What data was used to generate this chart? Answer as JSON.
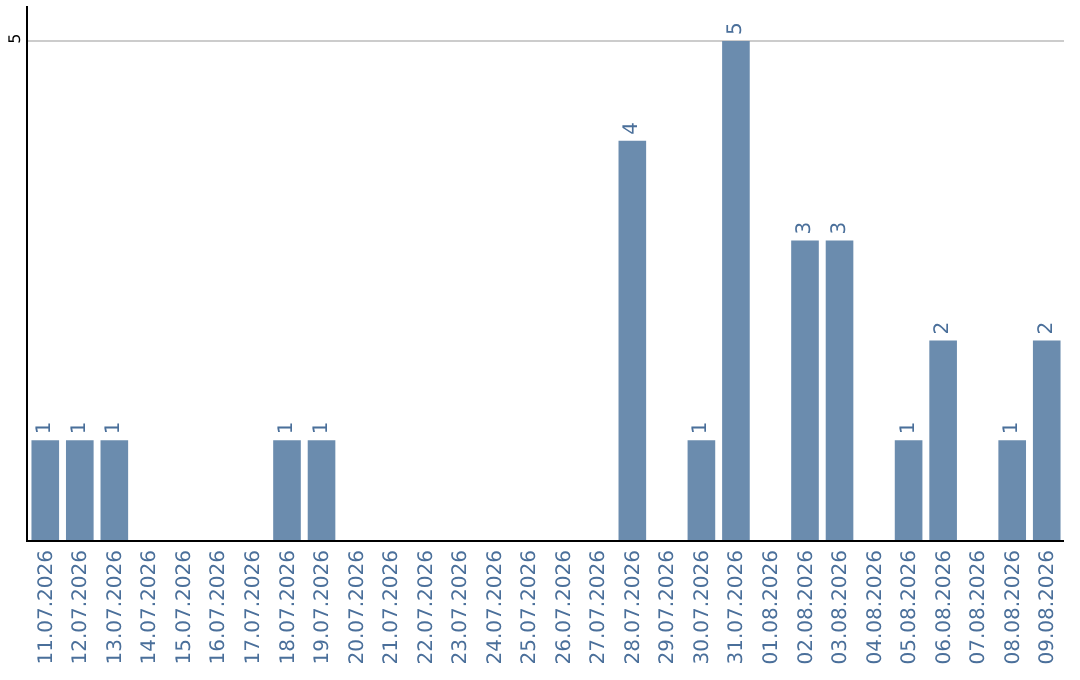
{
  "chart_data": {
    "type": "bar",
    "categories": [
      "11.07.2026",
      "12.07.2026",
      "13.07.2026",
      "14.07.2026",
      "15.07.2026",
      "16.07.2026",
      "17.07.2026",
      "18.07.2026",
      "19.07.2026",
      "20.07.2026",
      "21.07.2026",
      "22.07.2026",
      "23.07.2026",
      "24.07.2026",
      "25.07.2026",
      "26.07.2026",
      "27.07.2026",
      "28.07.2026",
      "29.07.2026",
      "30.07.2026",
      "31.07.2026",
      "01.08.2026",
      "02.08.2026",
      "03.08.2026",
      "04.08.2026",
      "05.08.2026",
      "06.08.2026",
      "07.08.2026",
      "08.08.2026",
      "09.08.2026"
    ],
    "values": [
      1,
      1,
      1,
      0,
      0,
      0,
      0,
      1,
      1,
      0,
      0,
      0,
      0,
      0,
      0,
      0,
      0,
      4,
      0,
      1,
      5,
      0,
      3,
      3,
      0,
      1,
      2,
      0,
      1,
      2
    ],
    "value_labels": [
      "1",
      "1",
      "1",
      null,
      null,
      null,
      null,
      "1",
      "1",
      null,
      null,
      null,
      null,
      null,
      null,
      null,
      null,
      "4",
      null,
      "1",
      "5",
      null,
      "3",
      "3",
      null,
      "1",
      "2",
      null,
      "1",
      "2"
    ],
    "color": "#6b8cae",
    "ylim": [
      0,
      5.35
    ],
    "yticks": [
      5
    ],
    "grid": "y",
    "legend": false
  }
}
